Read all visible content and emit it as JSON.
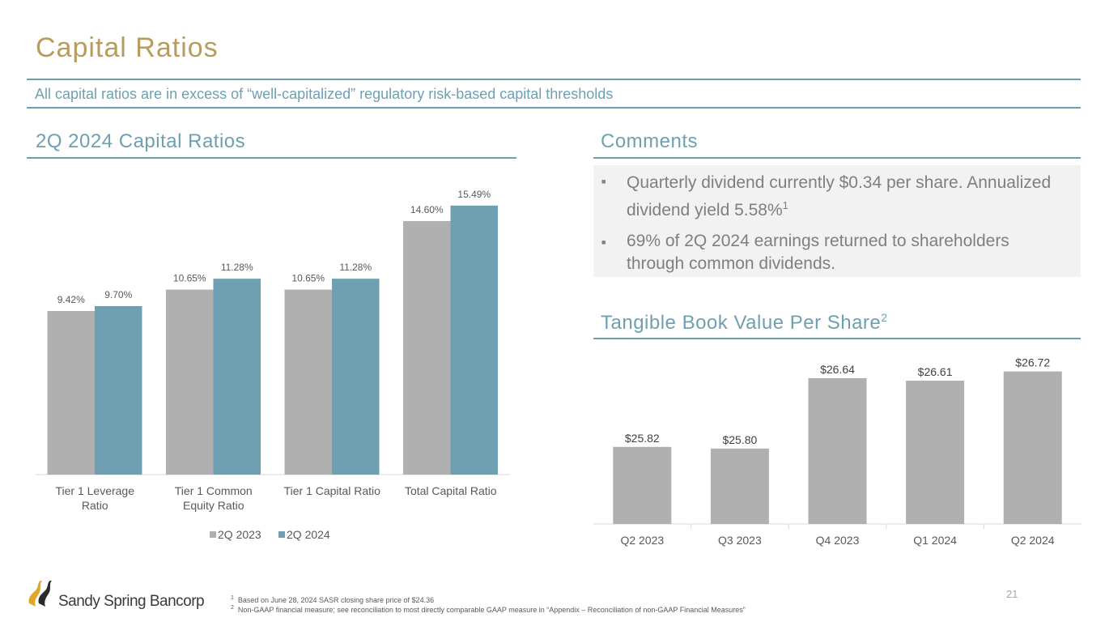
{
  "page": {
    "title": "Capital Ratios",
    "subtitle": "All capital ratios are in excess of “well-capitalized” regulatory risk-based capital thresholds",
    "page_number": "21"
  },
  "left_section": {
    "title": "2Q 2024 Capital Ratios"
  },
  "comments": {
    "title": "Comments",
    "items": [
      {
        "text": "Quarterly dividend currently $0.34 per share. Annualized dividend yield 5.58%",
        "sup": "1"
      },
      {
        "text": "69% of 2Q 2024 earnings returned to shareholders through common dividends.",
        "sup": ""
      }
    ]
  },
  "tbv_section": {
    "title": "Tangible Book Value Per Share",
    "sup": "2"
  },
  "chart_data": [
    {
      "type": "bar",
      "title": "2Q 2024 Capital Ratios",
      "categories": [
        [
          "Tier 1 Leverage",
          "Ratio"
        ],
        [
          "Tier 1 Common",
          "Equity Ratio"
        ],
        [
          "Tier 1 Capital Ratio"
        ],
        [
          "Total Capital Ratio"
        ]
      ],
      "series": [
        {
          "name": "2Q 2023",
          "values": [
            9.42,
            10.65,
            10.65,
            14.6
          ],
          "labels": [
            "9.42%",
            "10.65%",
            "10.65%",
            "14.60%"
          ],
          "color": "#b0b0b0"
        },
        {
          "name": "2Q 2024",
          "values": [
            9.7,
            11.28,
            11.28,
            15.49
          ],
          "labels": [
            "9.70%",
            "11.28%",
            "11.28%",
            "15.49%"
          ],
          "color": "#6fa0b2"
        }
      ],
      "legend": "bottom",
      "ylim": [
        0,
        18
      ]
    },
    {
      "type": "bar",
      "title": "Tangible Book Value Per Share",
      "categories": [
        "Q2 2023",
        "Q3 2023",
        "Q4 2023",
        "Q1 2024",
        "Q2 2024"
      ],
      "values": [
        25.82,
        25.8,
        26.64,
        26.61,
        26.72
      ],
      "labels": [
        "$25.82",
        "$25.80",
        "$26.64",
        "$26.61",
        "$26.72"
      ],
      "color": "#b0b0b0",
      "ylim": [
        24.9,
        26.9
      ]
    }
  ],
  "footnotes": [
    {
      "num": "1",
      "text": "Based on June 28, 2024 SASR closing share price of $24.36"
    },
    {
      "num": "2",
      "text": "Non-GAAP financial measure; see reconciliation to most directly comparable GAAP measure in “Appendix – Reconciliation of non-GAAP Financial Measures”"
    }
  ],
  "logo": {
    "text": "Sandy Spring Bancorp",
    "colors": {
      "gold": "#e0a828",
      "dark": "#2b2b2b"
    }
  }
}
